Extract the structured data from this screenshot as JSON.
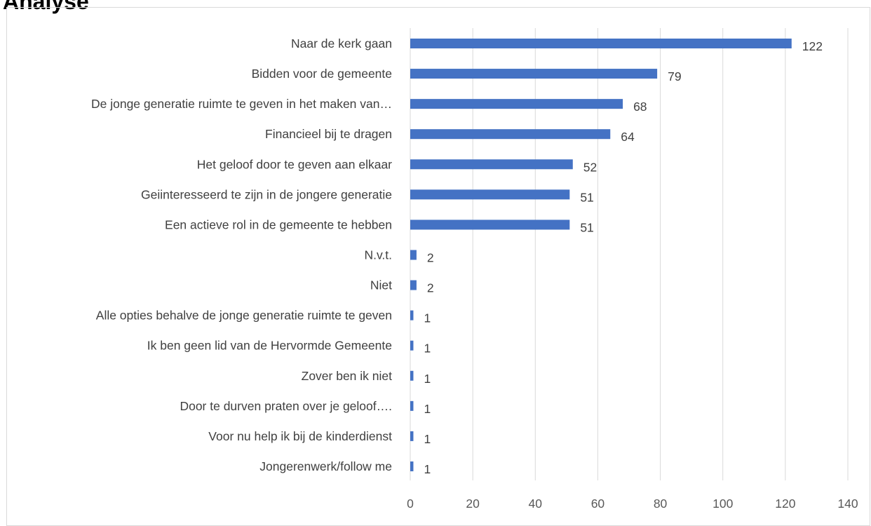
{
  "page": {
    "heading": "Analyse"
  },
  "chart_data": {
    "type": "bar",
    "orientation": "horizontal",
    "categories": [
      "Naar de kerk gaan",
      "Bidden voor de gemeente",
      "De jonge generatie ruimte te geven in het maken van…",
      "Financieel bij te dragen",
      "Het geloof door te geven aan elkaar",
      "Geiinteresseerd te zijn in de jongere generatie",
      "Een actieve rol in de gemeente te hebben",
      "N.v.t.",
      "Niet",
      "Alle opties behalve de jonge generatie ruimte te geven",
      "Ik ben geen lid van de Hervormde Gemeente",
      "Zover ben ik niet",
      "Door te durven praten over je geloof….",
      "Voor nu help ik bij de kinderdienst",
      "Jongerenwerk/follow me"
    ],
    "values": [
      122,
      79,
      68,
      64,
      52,
      51,
      51,
      2,
      2,
      1,
      1,
      1,
      1,
      1,
      1
    ],
    "xlim": [
      0,
      140
    ],
    "xticks": [
      0,
      20,
      40,
      60,
      80,
      100,
      120,
      140
    ],
    "grid": "vertical",
    "data_labels": true,
    "bar_color": "#4472c4",
    "gridline_color": "#d9d9d9"
  }
}
